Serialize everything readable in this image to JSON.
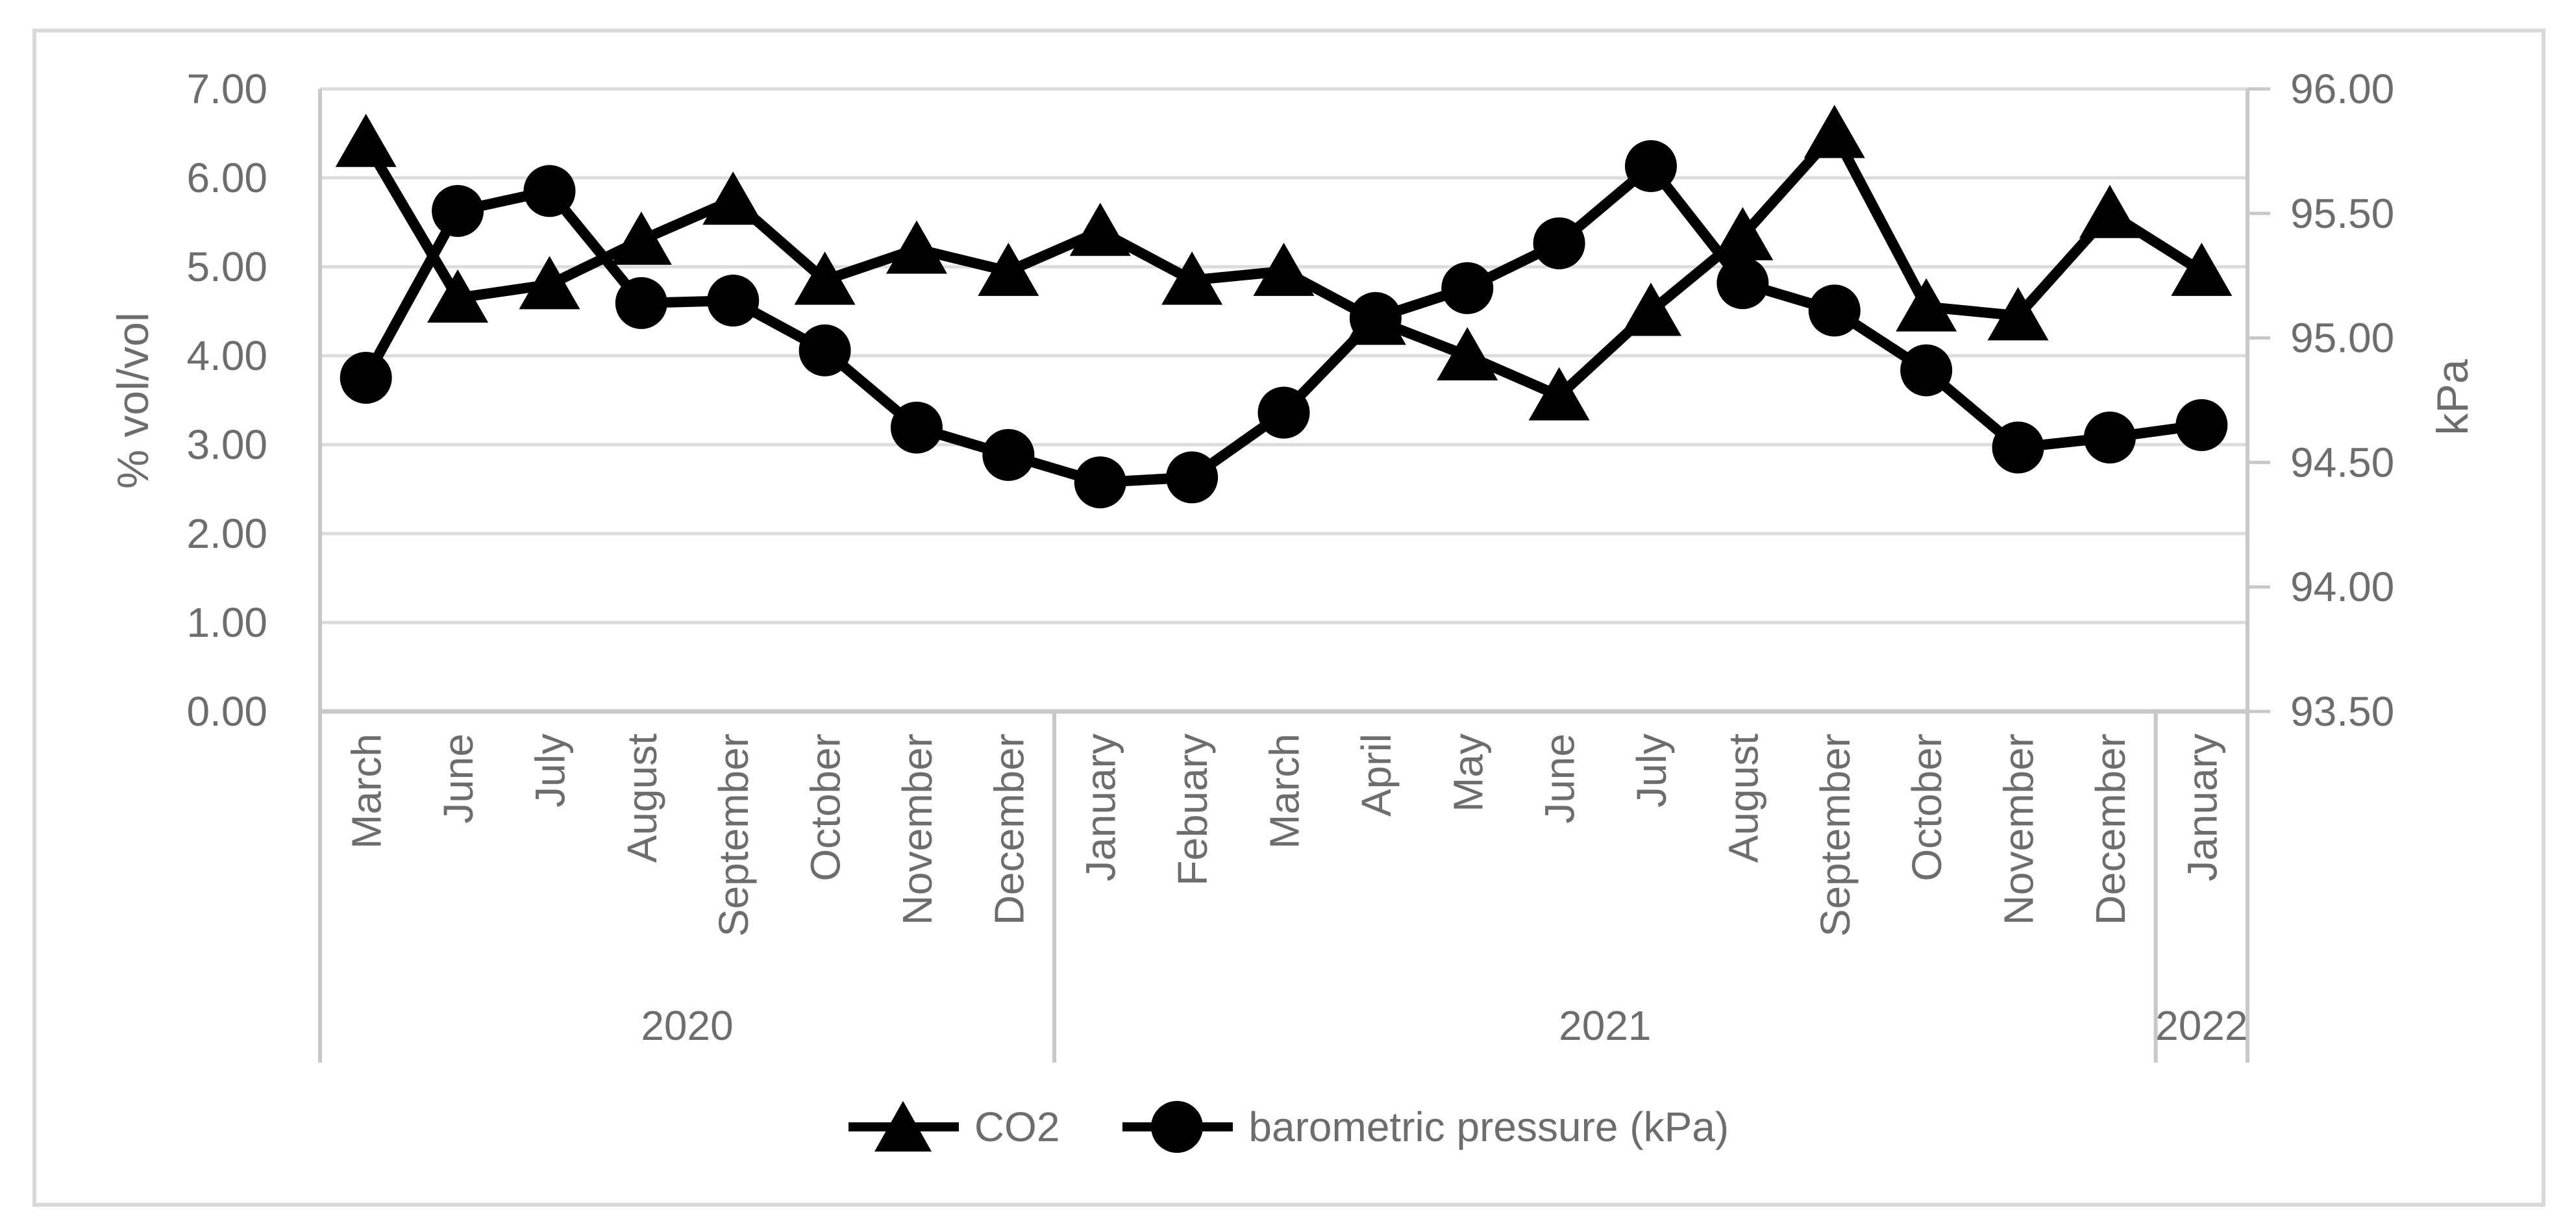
{
  "figure": {
    "background": "#ffffff",
    "border_color": "#d9d9d9",
    "text_color": "#6d6d6d",
    "gridline_color": "#dcdcdc",
    "axis_line_color": "#c8c8c8",
    "series_color": "#000000"
  },
  "chart_data": {
    "type": "line",
    "title": "",
    "grid": "horizontal",
    "legend_position": "bottom",
    "x_categories": [
      "March",
      "June",
      "July",
      "August",
      "September",
      "October",
      "November",
      "December",
      "January",
      "Febuary",
      "March",
      "April",
      "May",
      "June",
      "July",
      "August",
      "September",
      "October",
      "November",
      "December",
      "January"
    ],
    "year_groups": [
      {
        "label": "2020",
        "months": 8
      },
      {
        "label": "2021",
        "months": 12
      },
      {
        "label": "2022",
        "months": 1
      }
    ],
    "left_axis": {
      "title": "% vol/vol",
      "min": 0,
      "max": 7,
      "tick_labels": [
        "0.00",
        "1.00",
        "2.00",
        "3.00",
        "4.00",
        "5.00",
        "6.00",
        "7.00"
      ]
    },
    "right_axis": {
      "title": "kPa",
      "min": 93.5,
      "max": 96,
      "tick_labels": [
        "93.50",
        "94.00",
        "94.50",
        "95.00",
        "95.50",
        "96.00"
      ]
    },
    "series": [
      {
        "name": "CO2",
        "axis": "left",
        "marker": "triangle",
        "color": "#000000",
        "values": [
          6.4,
          4.65,
          4.8,
          5.3,
          5.75,
          4.85,
          5.2,
          4.95,
          5.4,
          4.85,
          4.95,
          4.4,
          4.0,
          3.55,
          4.5,
          5.35,
          6.5,
          4.55,
          4.45,
          5.6,
          4.95
        ]
      },
      {
        "name": "barometric pressure (kPa)",
        "axis": "right",
        "marker": "circle",
        "color": "#000000",
        "values": [
          94.84,
          95.51,
          95.59,
          95.14,
          95.15,
          94.95,
          94.64,
          94.53,
          94.42,
          94.44,
          94.7,
          95.08,
          95.2,
          95.38,
          95.69,
          95.22,
          95.11,
          94.87,
          94.56,
          94.6,
          94.65
        ]
      }
    ]
  }
}
